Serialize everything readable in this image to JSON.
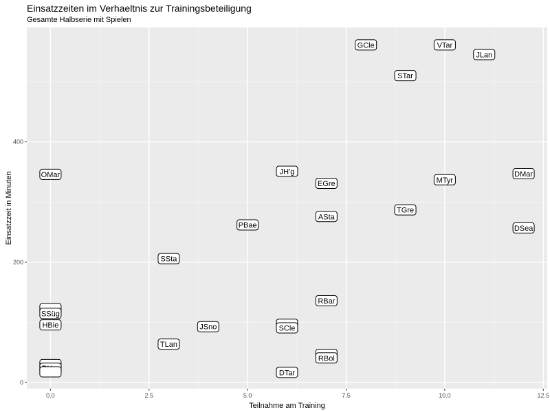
{
  "chart_data": {
    "type": "scatter",
    "title": "Einsatzzeiten im Verhaeltnis zur Trainingsbeteiligung",
    "subtitle": "Gesamte Halbserie mit Spielen",
    "xlabel": "Teilnahme am Training",
    "ylabel": "Einsatzzeit in Minuten",
    "xlim": [
      -0.6,
      12.6
    ],
    "ylim": [
      -10,
      590
    ],
    "xticks": [
      0.0,
      2.5,
      5.0,
      7.5,
      10.0,
      12.5
    ],
    "xtick_labels": [
      "0.0",
      "2.5",
      "5.0",
      "7.5",
      "10.0",
      "12.5"
    ],
    "yticks": [
      0,
      200,
      400
    ],
    "ytick_labels": [
      "0",
      "200",
      "400"
    ],
    "grid": true,
    "points": [
      {
        "label": "GCle",
        "x": 8,
        "y": 561
      },
      {
        "label": "VTar",
        "x": 10,
        "y": 561
      },
      {
        "label": "JLan",
        "x": 11,
        "y": 545
      },
      {
        "label": "STar",
        "x": 9,
        "y": 510
      },
      {
        "label": "OMar",
        "x": 0,
        "y": 346
      },
      {
        "label": "JH'g",
        "x": 6,
        "y": 351
      },
      {
        "label": "EGre",
        "x": 7,
        "y": 331
      },
      {
        "label": "DMar",
        "x": 12,
        "y": 347
      },
      {
        "label": "MTyr",
        "x": 10,
        "y": 337
      },
      {
        "label": "TGre",
        "x": 9,
        "y": 287
      },
      {
        "label": "ASta",
        "x": 7,
        "y": 276
      },
      {
        "label": "PBae",
        "x": 5,
        "y": 262
      },
      {
        "label": "DSea",
        "x": 12,
        "y": 257
      },
      {
        "label": "SSta",
        "x": 3,
        "y": 206
      },
      {
        "label": "RBar",
        "x": 7,
        "y": 136
      },
      {
        "label": "",
        "x": 0,
        "y": 123
      },
      {
        "label": "SSüg",
        "x": 0,
        "y": 115
      },
      {
        "label": "HBie",
        "x": 0,
        "y": 96
      },
      {
        "label": "",
        "x": 6,
        "y": 97
      },
      {
        "label": "JSno",
        "x": 4,
        "y": 93
      },
      {
        "label": "SCle",
        "x": 6,
        "y": 91
      },
      {
        "label": "TLan",
        "x": 3,
        "y": 64
      },
      {
        "label": "",
        "x": 7,
        "y": 47
      },
      {
        "label": "RBol",
        "x": 7,
        "y": 41
      },
      {
        "label": "",
        "x": 0,
        "y": 30
      },
      {
        "label": "RHer",
        "x": 0,
        "y": 24
      },
      {
        "label": "",
        "x": 0,
        "y": 18
      },
      {
        "label": "DTar",
        "x": 6,
        "y": 17
      }
    ]
  }
}
